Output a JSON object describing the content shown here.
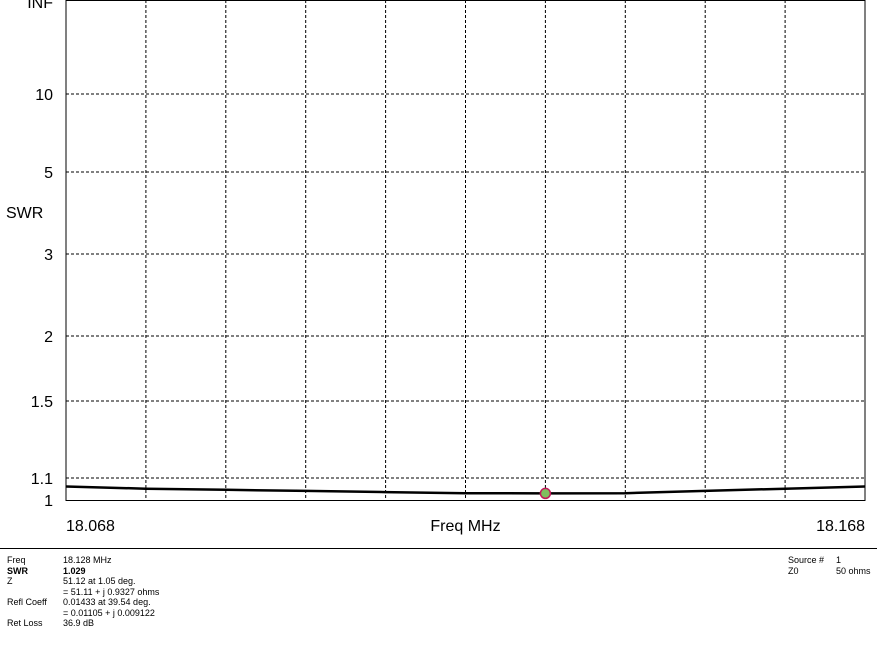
{
  "chart_data": {
    "type": "line",
    "title": "",
    "xlabel": "Freq MHz",
    "ylabel": "SWR",
    "x_range": [
      18.068,
      18.168
    ],
    "x_tick_labels": [
      "18.068",
      "18.168"
    ],
    "y_scale": "reflection (SWR scale)",
    "y_tick_labels": [
      "INF",
      "10",
      "5",
      "3",
      "2",
      "1.5",
      "1.1",
      "1"
    ],
    "y_tick_values": [
      "INF",
      10,
      5,
      3,
      2,
      1.5,
      1.1,
      1
    ],
    "grid": true,
    "series": [
      {
        "color": "#000000",
        "x": [
          18.068,
          18.078,
          18.088,
          18.098,
          18.108,
          18.118,
          18.128,
          18.138,
          18.148,
          18.158,
          18.168
        ],
        "y": [
          1.06,
          1.05,
          1.045,
          1.04,
          1.035,
          1.03,
          1.029,
          1.03,
          1.04,
          1.05,
          1.06
        ]
      }
    ],
    "marker": {
      "x": 18.128,
      "y": 1.029,
      "color": "#7fbf5f",
      "edge": "#c2185b"
    }
  },
  "info": {
    "freq": {
      "label": "Freq",
      "value": "18.128 MHz"
    },
    "swr": {
      "label": "SWR",
      "value": "1.029"
    },
    "z": {
      "label": "Z",
      "value": "51.12 at 1.05 deg.",
      "value2": "= 51.11 + j 0.9327 ohms"
    },
    "refl": {
      "label": "Refl Coeff",
      "value": "0.01433 at 39.54 deg.",
      "value2": "= 0.01105 + j 0.009122"
    },
    "retloss": {
      "label": "Ret Loss",
      "value": "36.9 dB"
    },
    "source": {
      "label": "Source #",
      "value": "1"
    },
    "z0": {
      "label": "Z0",
      "value": "50 ohms"
    }
  }
}
